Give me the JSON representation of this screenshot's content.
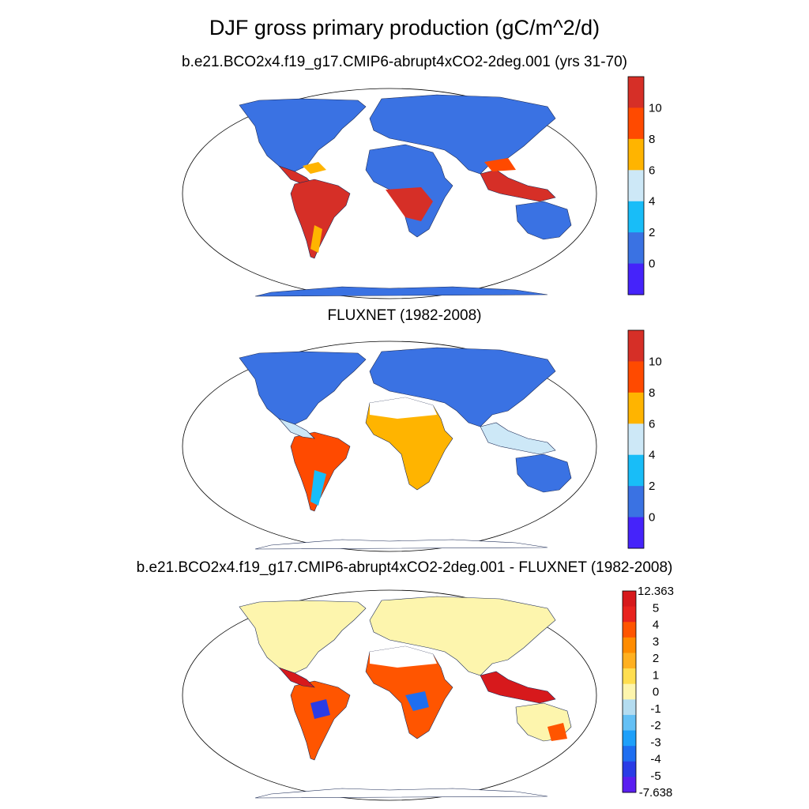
{
  "title": "DJF gross primary production (gC/m^2/d)",
  "panels": [
    {
      "title": "b.e21.BCO2x4.f19_g17.CMIP6-abrupt4xCO2-2deg.001 (yrs 31-70)",
      "colorbar": {
        "labels": [
          "10",
          "8",
          "6",
          "4",
          "2",
          "0"
        ],
        "colors": [
          "#d62f27",
          "#ff4a00",
          "#ffb400",
          "#cde8f7",
          "#18bdf8",
          "#3a72e3",
          "#4523fa"
        ]
      }
    },
    {
      "title": "FLUXNET (1982-2008)",
      "colorbar": {
        "labels": [
          "10",
          "8",
          "6",
          "4",
          "2",
          "0"
        ],
        "colors": [
          "#d62f27",
          "#ff4a00",
          "#ffb400",
          "#cde8f7",
          "#18bdf8",
          "#3a72e3",
          "#4523fa"
        ]
      }
    },
    {
      "title": "b.e21.BCO2x4.f19_g17.CMIP6-abrupt4xCO2-2deg.001 - FLUXNET (1982-2008)",
      "colorbar": {
        "labels": [
          "12.363",
          "5",
          "4",
          "3",
          "2",
          "1",
          "0",
          "-1",
          "-2",
          "-3",
          "-4",
          "-5",
          "-7.638"
        ],
        "colors": [
          "#d7191c",
          "#e8231e",
          "#ff5500",
          "#ff8c00",
          "#ffb020",
          "#ffde50",
          "#fdf5ad",
          "#b4dcf0",
          "#64c0f5",
          "#1ea0fa",
          "#1e6ef0",
          "#2a3ce6",
          "#5a1ef0"
        ]
      }
    }
  ]
}
